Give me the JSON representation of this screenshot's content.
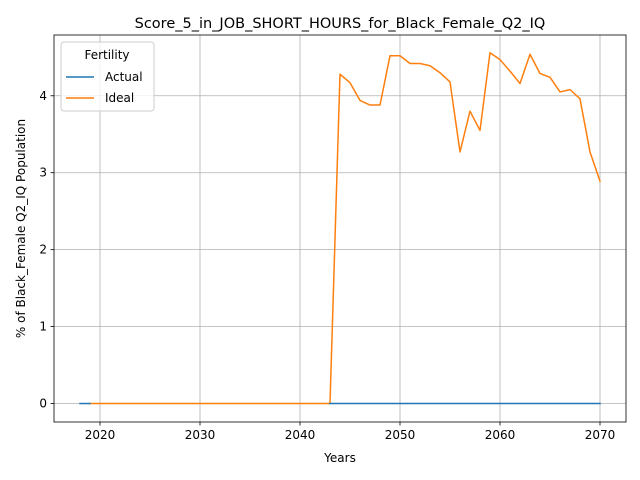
{
  "chart_data": {
    "type": "line",
    "title": "Score_5_in_JOB_SHORT_HOURS_for_Black_Female_Q2_IQ",
    "xlabel": "Years",
    "ylabel": "% of Black_Female Q2_IQ Population",
    "xlim": [
      2015.4,
      2072.6
    ],
    "ylim": [
      -0.24,
      4.79
    ],
    "xticks": [
      2020,
      2030,
      2040,
      2050,
      2060,
      2070
    ],
    "yticks": [
      0,
      1,
      2,
      3,
      4
    ],
    "grid": true,
    "legend": {
      "title": "Fertility",
      "placement": "top-left"
    },
    "series": [
      {
        "name": "Actual",
        "color": "#1f77b4",
        "x": [
          2018,
          2019
        ],
        "y": [
          0,
          0
        ]
      },
      {
        "name": "Ideal",
        "color": "#ff7f0e",
        "x": [
          2019,
          2020,
          2021,
          2022,
          2023,
          2024,
          2025,
          2026,
          2027,
          2028,
          2029,
          2030,
          2031,
          2032,
          2033,
          2034,
          2035,
          2036,
          2037,
          2038,
          2039,
          2040,
          2041,
          2042,
          2043,
          2044,
          2045,
          2046,
          2047,
          2048,
          2049,
          2050,
          2051,
          2052,
          2053,
          2054,
          2055,
          2056,
          2057,
          2058,
          2059,
          2060,
          2061,
          2062,
          2063,
          2064,
          2065,
          2066,
          2067,
          2068,
          2069,
          2070
        ],
        "y": [
          0,
          0,
          0,
          0,
          0,
          0,
          0,
          0,
          0,
          0,
          0,
          0,
          0,
          0,
          0,
          0,
          0,
          0,
          0,
          0,
          0,
          0,
          0,
          0,
          0,
          4.28,
          4.17,
          3.94,
          3.88,
          3.88,
          4.52,
          4.52,
          4.42,
          4.42,
          4.39,
          4.3,
          4.18,
          3.27,
          3.8,
          3.55,
          4.56,
          4.47,
          4.32,
          4.16,
          4.54,
          4.29,
          4.24,
          4.05,
          4.08,
          3.96,
          3.27,
          2.89
        ]
      },
      {
        "name": "",
        "color": "#1f77b4",
        "x": [
          2043,
          2070
        ],
        "y": [
          0,
          0
        ]
      }
    ]
  }
}
